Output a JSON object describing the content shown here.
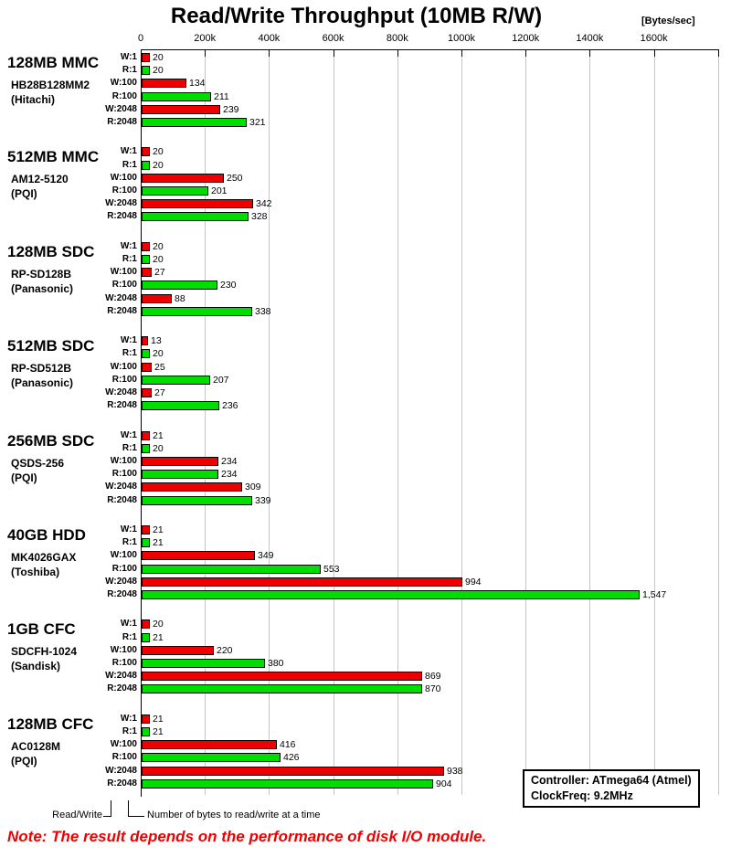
{
  "chart_data": {
    "type": "bar",
    "orientation": "horizontal",
    "title": "Read/Write Throughput (10MB R/W)",
    "xlabel": "[Bytes/sec]",
    "x_tick_labels": [
      "0",
      "200k",
      "400k",
      "600k",
      "800k",
      "1000k",
      "1200k",
      "1400k",
      "1600k"
    ],
    "xlim_k": [
      0,
      1800
    ],
    "grid": true,
    "value_unit": "kBytes/sec",
    "bar_labels": [
      "W:1",
      "R:1",
      "W:100",
      "R:100",
      "W:2048",
      "R:2048"
    ],
    "series_colors": {
      "write": "#ee0000",
      "read": "#00dd00"
    },
    "groups": [
      {
        "name": "128MB MMC",
        "model": "HB28B128MM2",
        "maker": "(Hitachi)",
        "values_k": [
          20,
          20,
          134,
          211,
          239,
          321
        ],
        "value_labels": [
          "20",
          "20",
          "134",
          "211",
          "239",
          "321"
        ]
      },
      {
        "name": "512MB MMC",
        "model": "AM12-5120",
        "maker": "(PQI)",
        "values_k": [
          20,
          20,
          250,
          201,
          342,
          328
        ],
        "value_labels": [
          "20",
          "20",
          "250",
          "201",
          "342",
          "328"
        ]
      },
      {
        "name": "128MB SDC",
        "model": "RP-SD128B",
        "maker": "(Panasonic)",
        "values_k": [
          20,
          20,
          27,
          230,
          88,
          338
        ],
        "value_labels": [
          "20",
          "20",
          "27",
          "230",
          "88",
          "338"
        ]
      },
      {
        "name": "512MB SDC",
        "model": "RP-SD512B",
        "maker": "(Panasonic)",
        "values_k": [
          13,
          20,
          25,
          207,
          27,
          236
        ],
        "value_labels": [
          "13",
          "20",
          "25",
          "207",
          "27",
          "236"
        ]
      },
      {
        "name": "256MB SDC",
        "model": "QSDS-256",
        "maker": "(PQI)",
        "values_k": [
          21,
          20,
          234,
          234,
          309,
          339
        ],
        "value_labels": [
          "21",
          "20",
          "234",
          "234",
          "309",
          "339"
        ]
      },
      {
        "name": "40GB HDD",
        "model": "MK4026GAX",
        "maker": "(Toshiba)",
        "values_k": [
          21,
          21,
          349,
          553,
          994,
          1547
        ],
        "value_labels": [
          "21",
          "21",
          "349",
          "553",
          "994",
          "1,547"
        ]
      },
      {
        "name": "1GB CFC",
        "model": "SDCFH-1024",
        "maker": "(Sandisk)",
        "values_k": [
          20,
          21,
          220,
          380,
          869,
          870
        ],
        "value_labels": [
          "20",
          "21",
          "220",
          "380",
          "869",
          "870"
        ]
      },
      {
        "name": "128MB CFC",
        "model": "AC0128M",
        "maker": "(PQI)",
        "values_k": [
          21,
          21,
          416,
          426,
          938,
          904
        ],
        "value_labels": [
          "21",
          "21",
          "416",
          "426",
          "938",
          "904"
        ]
      }
    ]
  },
  "legend": {
    "read_write": "Read/Write",
    "bytes_note": "Number of bytes to read/write at a time"
  },
  "info_box": {
    "line1": "Controller: ATmega64 (Atmel)",
    "line2": "ClockFreq: 9.2MHz"
  },
  "note": "Note: The result depends on the performance of disk I/O module."
}
